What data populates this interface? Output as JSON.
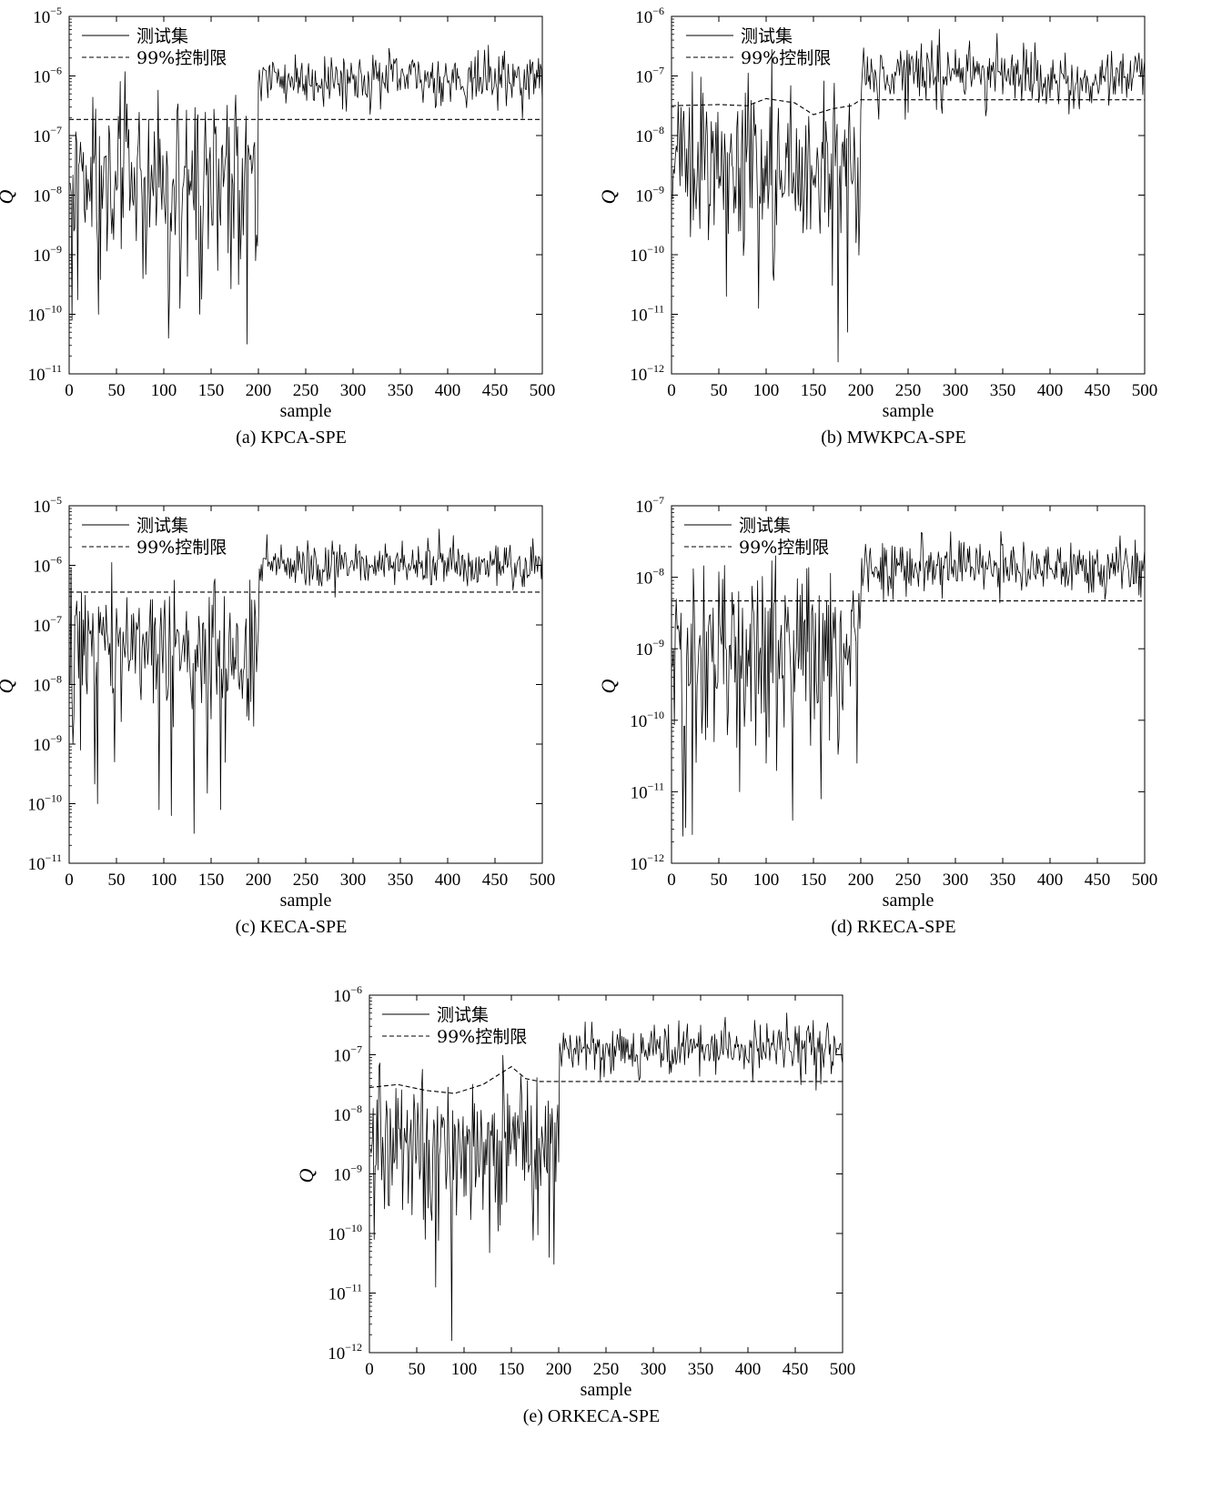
{
  "panels": [
    {
      "caption": "(a) KPCA-SPE",
      "chart_data": {
        "type": "line",
        "xlabel": "sample",
        "ylabel": "Q",
        "xlim": [
          0,
          500
        ],
        "xticks": [
          0,
          50,
          100,
          150,
          200,
          250,
          300,
          350,
          400,
          450,
          500
        ],
        "yscale": "log",
        "ylim_exp": [
          -11,
          -5
        ],
        "yticks_exp": [
          -11,
          -10,
          -9,
          -8,
          -7,
          -6,
          -5
        ],
        "legend": {
          "placement": "top-left"
        },
        "grid": false,
        "series": [
          {
            "name": "测试集",
            "style": "solid",
            "color": "#000000",
            "generator": {
              "seed": 11,
              "fault_at": 200,
              "n": 500,
              "normal_median_exp": -7.6,
              "normal_spread": 0.7,
              "fault_median_exp": -6.05,
              "fault_spread": 0.22,
              "spikes": [
                [
                  3,
                  -10.1
                ],
                [
                  31,
                  -10.0
                ],
                [
                  78,
                  -9.4
                ],
                [
                  105,
                  -10.4
                ],
                [
                  117,
                  -9.9
                ],
                [
                  138,
                  -10.0
                ],
                [
                  179,
                  -9.5
                ],
                [
                  188,
                  -10.5
                ],
                [
                  197,
                  -9.1
                ],
                [
                  30,
                  -8.8
                ],
                [
                  55,
                  -8.9
                ],
                [
                  147,
                  -8.9
                ]
              ]
            }
          },
          {
            "name": "99%控制限",
            "style": "dashed",
            "color": "#000000",
            "points": [
              [
                0,
                -6.73
              ],
              [
                500,
                -6.73
              ]
            ]
          }
        ]
      }
    },
    {
      "caption": "(b) MWKPCA-SPE",
      "chart_data": {
        "type": "line",
        "xlabel": "sample",
        "ylabel": "Q",
        "xlim": [
          0,
          500
        ],
        "xticks": [
          0,
          50,
          100,
          150,
          200,
          250,
          300,
          350,
          400,
          450,
          500
        ],
        "yscale": "log",
        "ylim_exp": [
          -12,
          -6
        ],
        "yticks_exp": [
          -12,
          -11,
          -10,
          -9,
          -8,
          -7,
          -6
        ],
        "legend": {
          "placement": "top-center"
        },
        "grid": false,
        "series": [
          {
            "name": "测试集",
            "style": "solid",
            "color": "#000000",
            "generator": {
              "seed": 23,
              "fault_at": 200,
              "n": 500,
              "normal_median_exp": -8.4,
              "normal_spread": 0.6,
              "fault_median_exp": -7.0,
              "fault_spread": 0.25,
              "spikes": [
                [
                  58,
                  -10.7
                ],
                [
                  73,
                  -9.6
                ],
                [
                  92,
                  -10.9
                ],
                [
                  111,
                  -9.5
                ],
                [
                  176,
                  -11.8
                ],
                [
                  186,
                  -11.3
                ],
                [
                  195,
                  -9.8
                ],
                [
                  20,
                  -9.7
                ],
                [
                  45,
                  -9.5
                ]
              ]
            }
          },
          {
            "name": "99%控制限",
            "style": "dashed",
            "color": "#000000",
            "points": [
              [
                0,
                -7.5
              ],
              [
                50,
                -7.48
              ],
              [
                80,
                -7.5
              ],
              [
                100,
                -7.38
              ],
              [
                130,
                -7.45
              ],
              [
                150,
                -7.65
              ],
              [
                170,
                -7.55
              ],
              [
                190,
                -7.5
              ],
              [
                200,
                -7.4
              ],
              [
                500,
                -7.4
              ]
            ]
          }
        ]
      }
    },
    {
      "caption": "(c) KECA-SPE",
      "chart_data": {
        "type": "line",
        "xlabel": "sample",
        "ylabel": "Q",
        "xlim": [
          0,
          500
        ],
        "xticks": [
          0,
          50,
          100,
          150,
          200,
          250,
          300,
          350,
          400,
          450,
          500
        ],
        "yscale": "log",
        "ylim_exp": [
          -11,
          -5
        ],
        "yticks_exp": [
          -11,
          -10,
          -9,
          -8,
          -7,
          -6,
          -5
        ],
        "legend": {
          "placement": "top-left"
        },
        "grid": false,
        "series": [
          {
            "name": "测试集",
            "style": "solid",
            "color": "#000000",
            "generator": {
              "seed": 37,
              "fault_at": 200,
              "n": 500,
              "normal_median_exp": -7.4,
              "normal_spread": 0.55,
              "fault_median_exp": -6.0,
              "fault_spread": 0.2,
              "spikes": [
                [
                  12,
                  -9.1
                ],
                [
                  30,
                  -10.0
                ],
                [
                  48,
                  -9.3
                ],
                [
                  95,
                  -10.1
                ],
                [
                  108,
                  -10.2
                ],
                [
                  132,
                  -10.5
                ],
                [
                  160,
                  -10.1
                ],
                [
                  195,
                  -8.7
                ],
                [
                  190,
                  -8.6
                ]
              ]
            }
          },
          {
            "name": "99%控制限",
            "style": "dashed",
            "color": "#000000",
            "points": [
              [
                0,
                -6.45
              ],
              [
                500,
                -6.45
              ]
            ]
          }
        ]
      }
    },
    {
      "caption": "(d) RKECA-SPE",
      "chart_data": {
        "type": "line",
        "xlabel": "sample",
        "ylabel": "Q",
        "xlim": [
          0,
          500
        ],
        "xticks": [
          0,
          50,
          100,
          150,
          200,
          250,
          300,
          350,
          400,
          450,
          500
        ],
        "yscale": "log",
        "ylim_exp": [
          -12,
          -7
        ],
        "yticks_exp": [
          -12,
          -11,
          -10,
          -9,
          -8,
          -7
        ],
        "legend": {
          "placement": "top-left"
        },
        "grid": false,
        "series": [
          {
            "name": "测试集",
            "style": "solid",
            "color": "#000000",
            "generator": {
              "seed": 53,
              "fault_at": 200,
              "n": 500,
              "normal_median_exp": -9.0,
              "normal_spread": 0.6,
              "fault_median_exp": -7.85,
              "fault_spread": 0.2,
              "spikes": [
                [
                  15,
                  -11.5
                ],
                [
                  22,
                  -11.6
                ],
                [
                  72,
                  -11.0
                ],
                [
                  128,
                  -11.4
                ],
                [
                  158,
                  -11.1
                ],
                [
                  196,
                  -10.6
                ],
                [
                  45,
                  -10.3
                ],
                [
                  100,
                  -10.6
                ]
              ]
            }
          },
          {
            "name": "99%控制限",
            "style": "dashed",
            "color": "#000000",
            "points": [
              [
                0,
                -8.33
              ],
              [
                500,
                -8.33
              ]
            ]
          }
        ]
      }
    },
    {
      "caption": "(e) ORKECA-SPE",
      "chart_data": {
        "type": "line",
        "xlabel": "sample",
        "ylabel": "Q",
        "xlim": [
          0,
          500
        ],
        "xticks": [
          0,
          50,
          100,
          150,
          200,
          250,
          300,
          350,
          400,
          450,
          500
        ],
        "yscale": "log",
        "ylim_exp": [
          -12,
          -6
        ],
        "yticks_exp": [
          -12,
          -11,
          -10,
          -9,
          -8,
          -7,
          -6
        ],
        "legend": {
          "placement": "top-left"
        },
        "grid": false,
        "series": [
          {
            "name": "测试集",
            "style": "solid",
            "color": "#000000",
            "generator": {
              "seed": 71,
              "fault_at": 200,
              "n": 500,
              "normal_median_exp": -8.4,
              "normal_spread": 0.55,
              "fault_median_exp": -6.9,
              "fault_spread": 0.22,
              "spikes": [
                [
                  5,
                  -10.1
                ],
                [
                  70,
                  -10.9
                ],
                [
                  87,
                  -11.8
                ],
                [
                  190,
                  -10.4
                ],
                [
                  35,
                  -9.6
                ],
                [
                  120,
                  -9.6
                ]
              ]
            }
          },
          {
            "name": "99%控制限",
            "style": "dashed",
            "color": "#000000",
            "points": [
              [
                0,
                -7.55
              ],
              [
                30,
                -7.5
              ],
              [
                60,
                -7.6
              ],
              [
                90,
                -7.65
              ],
              [
                120,
                -7.5
              ],
              [
                150,
                -7.2
              ],
              [
                165,
                -7.4
              ],
              [
                180,
                -7.45
              ],
              [
                200,
                -7.45
              ],
              [
                500,
                -7.45
              ]
            ]
          }
        ]
      }
    }
  ]
}
